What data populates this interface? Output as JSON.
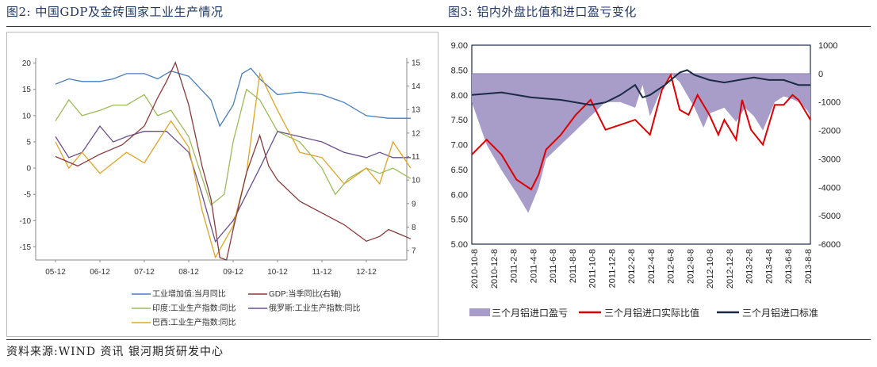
{
  "fig2": {
    "title": "图2: 中国GDP及金砖国家工业生产情况",
    "chart_data": {
      "type": "line",
      "x_ticks": [
        "05-12",
        "06-12",
        "07-12",
        "08-12",
        "09-12",
        "10-12",
        "11-12",
        "12-12"
      ],
      "y_left_ticks": [
        "20",
        "15",
        "10",
        "5",
        "0",
        "-5",
        "-10",
        "-15"
      ],
      "y_right_ticks": [
        "15",
        "14",
        "13",
        "12",
        "11",
        "10",
        "9",
        "8",
        "7"
      ],
      "y_left_range": [
        -17.5,
        21
      ],
      "y_right_range": [
        6.6,
        15.2
      ],
      "legend": [
        "工业增加值:当月同比",
        "GDP:当季同比(右轴)",
        "印度:工业生产指数:同比",
        "俄罗斯:工业生产指数:同比",
        "巴西:工业生产指数:同比"
      ],
      "colors": {
        "china_ip": "#4a7ebb",
        "gdp": "#8b3a3a",
        "india": "#9bbb59",
        "russia": "#6b4f8a",
        "brazil": "#e0a526"
      },
      "series": {
        "china_ip": {
          "name": "工业增加值:当月同比",
          "axis": "left",
          "points": [
            [
              0,
              16
            ],
            [
              0.3,
              17
            ],
            [
              0.6,
              16.5
            ],
            [
              1,
              16.5
            ],
            [
              1.3,
              17
            ],
            [
              1.6,
              18
            ],
            [
              2,
              18
            ],
            [
              2.3,
              17
            ],
            [
              2.6,
              18.5
            ],
            [
              3,
              17.5
            ],
            [
              3.5,
              13
            ],
            [
              3.7,
              8
            ],
            [
              4,
              12
            ],
            [
              4.2,
              18
            ],
            [
              4.4,
              19
            ],
            [
              4.6,
              17
            ],
            [
              5,
              14
            ],
            [
              5.5,
              14.5
            ],
            [
              6,
              14
            ],
            [
              6.5,
              12.5
            ],
            [
              7,
              10
            ],
            [
              7.5,
              9.5
            ],
            [
              8,
              9.5
            ]
          ]
        },
        "gdp": {
          "name": "GDP:当季同比(右轴)",
          "axis": "right",
          "points": [
            [
              0,
              11
            ],
            [
              0.5,
              10.6
            ],
            [
              1,
              11.1
            ],
            [
              1.5,
              11.5
            ],
            [
              2,
              12.3
            ],
            [
              2.3,
              13.5
            ],
            [
              2.5,
              14.2
            ],
            [
              2.7,
              15
            ],
            [
              3,
              13.2
            ],
            [
              3.3,
              10.6
            ],
            [
              3.5,
              9.2
            ],
            [
              3.7,
              6.7
            ],
            [
              3.85,
              6.6
            ],
            [
              4,
              7.9
            ],
            [
              4.3,
              10.3
            ],
            [
              4.6,
              11.9
            ],
            [
              4.8,
              10.6
            ],
            [
              5,
              10
            ],
            [
              5.5,
              9.1
            ],
            [
              6,
              8.6
            ],
            [
              6.5,
              8.1
            ],
            [
              7,
              7.4
            ],
            [
              7.3,
              7.6
            ],
            [
              7.5,
              7.9
            ],
            [
              8,
              7.5
            ]
          ]
        },
        "india": {
          "name": "印度:工业生产指数:同比",
          "axis": "left",
          "points": [
            [
              0,
              9
            ],
            [
              0.3,
              13
            ],
            [
              0.6,
              10
            ],
            [
              1,
              11
            ],
            [
              1.3,
              12
            ],
            [
              1.6,
              12
            ],
            [
              2,
              14
            ],
            [
              2.3,
              10
            ],
            [
              2.6,
              11
            ],
            [
              3,
              6
            ],
            [
              3.5,
              -7
            ],
            [
              3.8,
              -5
            ],
            [
              4,
              5
            ],
            [
              4.3,
              15
            ],
            [
              4.6,
              13
            ],
            [
              5,
              7
            ],
            [
              5.5,
              5
            ],
            [
              6,
              0
            ],
            [
              6.3,
              -5
            ],
            [
              6.6,
              -2
            ],
            [
              7,
              0
            ],
            [
              7.3,
              -1
            ],
            [
              7.6,
              0
            ],
            [
              8,
              -2
            ]
          ]
        },
        "russia": {
          "name": "俄罗斯:工业生产指数:同比",
          "axis": "left",
          "points": [
            [
              0,
              6
            ],
            [
              0.3,
              2
            ],
            [
              0.6,
              3
            ],
            [
              1,
              8
            ],
            [
              1.3,
              5
            ],
            [
              1.6,
              6
            ],
            [
              2,
              7
            ],
            [
              2.5,
              7
            ],
            [
              3,
              3
            ],
            [
              3.3,
              -5
            ],
            [
              3.6,
              -14
            ],
            [
              4,
              -10
            ],
            [
              4.3,
              -5
            ],
            [
              4.6,
              0
            ],
            [
              5,
              7
            ],
            [
              5.5,
              6
            ],
            [
              6,
              5
            ],
            [
              6.5,
              3
            ],
            [
              7,
              2
            ],
            [
              7.3,
              3
            ],
            [
              7.6,
              2
            ],
            [
              8,
              2
            ]
          ]
        },
        "brazil": {
          "name": "巴西:工业生产指数:同比",
          "axis": "left",
          "points": [
            [
              0,
              5
            ],
            [
              0.3,
              0
            ],
            [
              0.6,
              3
            ],
            [
              1,
              -1
            ],
            [
              1.3,
              1
            ],
            [
              1.6,
              3
            ],
            [
              2,
              1
            ],
            [
              2.3,
              5
            ],
            [
              2.6,
              9
            ],
            [
              3,
              4
            ],
            [
              3.3,
              -8
            ],
            [
              3.6,
              -17
            ],
            [
              4,
              -11
            ],
            [
              4.3,
              -1
            ],
            [
              4.6,
              18
            ],
            [
              5,
              11
            ],
            [
              5.5,
              3
            ],
            [
              6,
              2
            ],
            [
              6.5,
              -3
            ],
            [
              7,
              0
            ],
            [
              7.3,
              -3
            ],
            [
              7.6,
              5
            ],
            [
              8,
              0
            ]
          ]
        }
      }
    }
  },
  "fig3": {
    "title": "图3: 铝内外盘比值和进口盈亏变化",
    "chart_data": {
      "type": "line",
      "x_labels": [
        "2010-10-8",
        "2010-12-8",
        "2011-2-8",
        "2011-4-8",
        "2011-6-8",
        "2011-8-8",
        "2011-10-8",
        "2011-12-8",
        "2012-2-8",
        "2012-4-8",
        "2012-6-8",
        "2012-8-8",
        "2012-10-8",
        "2012-12-8",
        "2013-2-8",
        "2013-4-8",
        "2013-6-8",
        "2013-8-8"
      ],
      "y_left_ticks": [
        "9.00",
        "8.50",
        "8.00",
        "7.50",
        "7.00",
        "6.50",
        "6.00",
        "5.50",
        "5.00"
      ],
      "y_right_ticks": [
        "1000",
        "0",
        "-1000",
        "-2000",
        "-3000",
        "-4000",
        "-5000",
        "-6000"
      ],
      "y_left_range": [
        5.0,
        9.0
      ],
      "y_right_range": [
        -6000,
        1000
      ],
      "legend": [
        "三个月铝进口盈亏",
        "三个月铝进口实际比值",
        "三个月铝进口标准"
      ],
      "colors": {
        "profit": "#a89cc8",
        "actual": "#e00000",
        "standard": "#1a2a44"
      },
      "series": {
        "actual": {
          "name": "三个月铝进口实际比值",
          "axis": "left",
          "points": [
            [
              0,
              6.8
            ],
            [
              1,
              7.1
            ],
            [
              2,
              6.8
            ],
            [
              3,
              6.3
            ],
            [
              4,
              6.1
            ],
            [
              4.5,
              6.4
            ],
            [
              5,
              6.9
            ],
            [
              6,
              7.2
            ],
            [
              7,
              7.6
            ],
            [
              8,
              7.9
            ],
            [
              9,
              7.3
            ],
            [
              10,
              7.4
            ],
            [
              11,
              7.5
            ],
            [
              12,
              7.2
            ],
            [
              12.8,
              8.1
            ],
            [
              13.4,
              8.4
            ],
            [
              14,
              7.7
            ],
            [
              14.6,
              7.6
            ],
            [
              15.2,
              8.0
            ],
            [
              16,
              7.6
            ],
            [
              16.6,
              7.2
            ],
            [
              17,
              7.5
            ],
            [
              17.8,
              7.1
            ],
            [
              18.2,
              7.9
            ],
            [
              18.8,
              7.3
            ],
            [
              19.6,
              7.0
            ],
            [
              20.4,
              7.8
            ],
            [
              21,
              7.8
            ],
            [
              21.6,
              8.0
            ],
            [
              22,
              7.9
            ],
            [
              22.6,
              7.6
            ],
            [
              22.8,
              7.5
            ]
          ]
        },
        "standard": {
          "name": "三个月铝进口标准",
          "axis": "left",
          "points": [
            [
              0,
              8.0
            ],
            [
              2,
              8.05
            ],
            [
              4,
              7.95
            ],
            [
              6,
              7.9
            ],
            [
              8,
              7.8
            ],
            [
              9,
              7.85
            ],
            [
              10,
              8.0
            ],
            [
              11,
              8.2
            ],
            [
              11.5,
              7.95
            ],
            [
              12,
              8.0
            ],
            [
              13,
              8.2
            ],
            [
              14,
              8.45
            ],
            [
              14.5,
              8.5
            ],
            [
              15,
              8.4
            ],
            [
              16,
              8.3
            ],
            [
              17,
              8.25
            ],
            [
              18,
              8.3
            ],
            [
              19,
              8.35
            ],
            [
              20,
              8.3
            ],
            [
              21,
              8.3
            ],
            [
              22,
              8.2
            ],
            [
              22.8,
              8.2
            ]
          ]
        },
        "profit": {
          "name": "三个月铝进口盈亏",
          "axis": "right",
          "points": [
            [
              0,
              -1000
            ],
            [
              1,
              -2500
            ],
            [
              2,
              -3400
            ],
            [
              3,
              -4200
            ],
            [
              3.8,
              -4900
            ],
            [
              4.5,
              -4000
            ],
            [
              5,
              -3000
            ],
            [
              6,
              -2500
            ],
            [
              7,
              -2000
            ],
            [
              8,
              -1500
            ],
            [
              9,
              -1000
            ],
            [
              10,
              -1000
            ],
            [
              11,
              -1200
            ],
            [
              11.5,
              -400
            ],
            [
              12,
              -1500
            ],
            [
              12.8,
              -500
            ],
            [
              13.4,
              0
            ],
            [
              14,
              -300
            ],
            [
              15,
              -1200
            ],
            [
              15.6,
              -1900
            ],
            [
              16,
              -1400
            ],
            [
              17,
              -1200
            ],
            [
              17.8,
              -1700
            ],
            [
              18.4,
              -1200
            ],
            [
              19,
              -1500
            ],
            [
              19.6,
              -2000
            ],
            [
              20.4,
              -1000
            ],
            [
              21,
              -800
            ],
            [
              21.6,
              -900
            ],
            [
              22,
              -1000
            ],
            [
              22.6,
              -1300
            ],
            [
              22.8,
              -1500
            ]
          ]
        }
      }
    }
  },
  "source": "资料来源:WIND 资讯   银河期货研发中心"
}
